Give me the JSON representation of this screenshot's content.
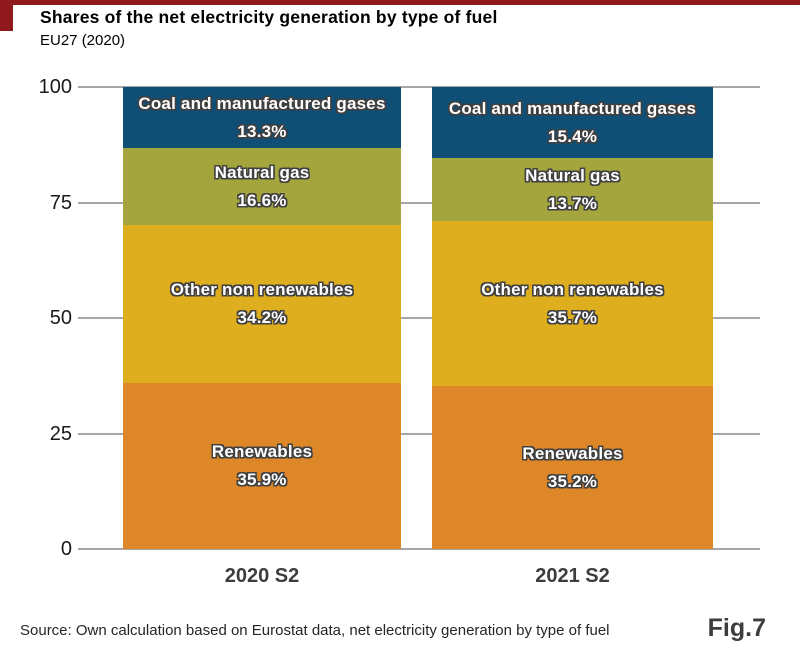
{
  "header": {
    "title": "Shares of the net electricity generation by type of fuel",
    "subtitle": "EU27 (2020)"
  },
  "chart_data": {
    "type": "bar",
    "stacked": true,
    "orientation": "vertical",
    "categories": [
      "2020 S2",
      "2021 S2"
    ],
    "series": [
      {
        "name": "Coal and manufactured gases",
        "color": "#0f4e75",
        "values": [
          13.3,
          15.4
        ]
      },
      {
        "name": "Natural gas",
        "color": "#a4a63d",
        "values": [
          16.6,
          13.7
        ]
      },
      {
        "name": "Other non renewables",
        "color": "#deae1f",
        "values": [
          34.2,
          35.7
        ]
      },
      {
        "name": "Renewables",
        "color": "#de8728",
        "values": [
          35.9,
          35.2
        ]
      }
    ],
    "series_order_note": "listed top-to-bottom as stacked in the figure",
    "value_suffix": "%",
    "ylim": [
      0,
      100
    ],
    "yticks": [
      0,
      25,
      50,
      75,
      100
    ],
    "grid": true,
    "legend": "labels inside segments",
    "xlabel": "",
    "ylabel": ""
  },
  "footer": {
    "source": "Source: Own calculation based on Eurostat data, net electricity generation by type of fuel",
    "figure_label": "Fig.7"
  },
  "colors": {
    "accent_red": "#8f191c",
    "gridline": "#a6a6a6",
    "background": "#ffffff",
    "segment_label_text": "#ffffff",
    "segment_label_outline": "#404040"
  }
}
